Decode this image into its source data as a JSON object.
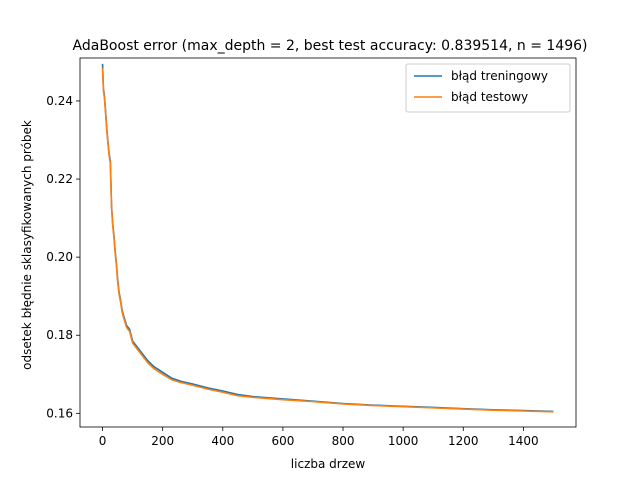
{
  "chart_data": {
    "type": "line",
    "title": "AdaBoost error (max_depth = 2, best test accuracy: 0.839514, n = 1496)",
    "xlabel": "liczba drzew",
    "ylabel": "odsetek błędnie sklasyfikowanych próbek",
    "xlim": [
      -75,
      1575
    ],
    "ylim": [
      0.1565,
      0.251
    ],
    "xticks": [
      0,
      200,
      400,
      600,
      800,
      1000,
      1200,
      1400
    ],
    "yticks": [
      0.16,
      0.18,
      0.2,
      0.22,
      0.24
    ],
    "legend_position": "top-right",
    "grid": false,
    "series": [
      {
        "name": "błąd treningowy",
        "color": "#1f77b4",
        "x": [
          0,
          3,
          6,
          10,
          14,
          18,
          22,
          26,
          30,
          34,
          38,
          42,
          46,
          50,
          55,
          60,
          65,
          70,
          80,
          90,
          100,
          110,
          120,
          135,
          150,
          170,
          200,
          230,
          260,
          300,
          350,
          400,
          450,
          500,
          600,
          700,
          800,
          900,
          1000,
          1100,
          1200,
          1300,
          1400,
          1500
        ],
        "y": [
          0.2495,
          0.243,
          0.2415,
          0.2375,
          0.233,
          0.2295,
          0.2265,
          0.2245,
          0.213,
          0.2085,
          0.2055,
          0.2015,
          0.1985,
          0.1945,
          0.191,
          0.189,
          0.1865,
          0.185,
          0.1825,
          0.1815,
          0.1785,
          0.1775,
          0.1765,
          0.175,
          0.1735,
          0.172,
          0.1705,
          0.169,
          0.1682,
          0.1675,
          0.1665,
          0.1657,
          0.1648,
          0.1643,
          0.1637,
          0.1631,
          0.1625,
          0.1621,
          0.1618,
          0.1615,
          0.1612,
          0.1609,
          0.1607,
          0.1605
        ]
      },
      {
        "name": "błąd testowy",
        "color": "#ff7f0e",
        "x": [
          0,
          3,
          6,
          10,
          14,
          18,
          22,
          26,
          30,
          34,
          38,
          42,
          46,
          50,
          55,
          60,
          65,
          70,
          80,
          90,
          100,
          110,
          120,
          135,
          150,
          170,
          200,
          230,
          260,
          300,
          350,
          400,
          450,
          500,
          600,
          700,
          800,
          900,
          1000,
          1100,
          1200,
          1300,
          1400,
          1500
        ],
        "y": [
          0.2485,
          0.2425,
          0.241,
          0.237,
          0.2325,
          0.229,
          0.226,
          0.224,
          0.2125,
          0.208,
          0.205,
          0.201,
          0.198,
          0.194,
          0.1905,
          0.1885,
          0.186,
          0.1845,
          0.182,
          0.181,
          0.178,
          0.177,
          0.176,
          0.1745,
          0.173,
          0.1715,
          0.17,
          0.1686,
          0.1679,
          0.1672,
          0.1662,
          0.1654,
          0.1645,
          0.1641,
          0.1635,
          0.163,
          0.1624,
          0.162,
          0.1617,
          0.1614,
          0.1611,
          0.1608,
          0.1606,
          0.1604
        ]
      }
    ]
  }
}
